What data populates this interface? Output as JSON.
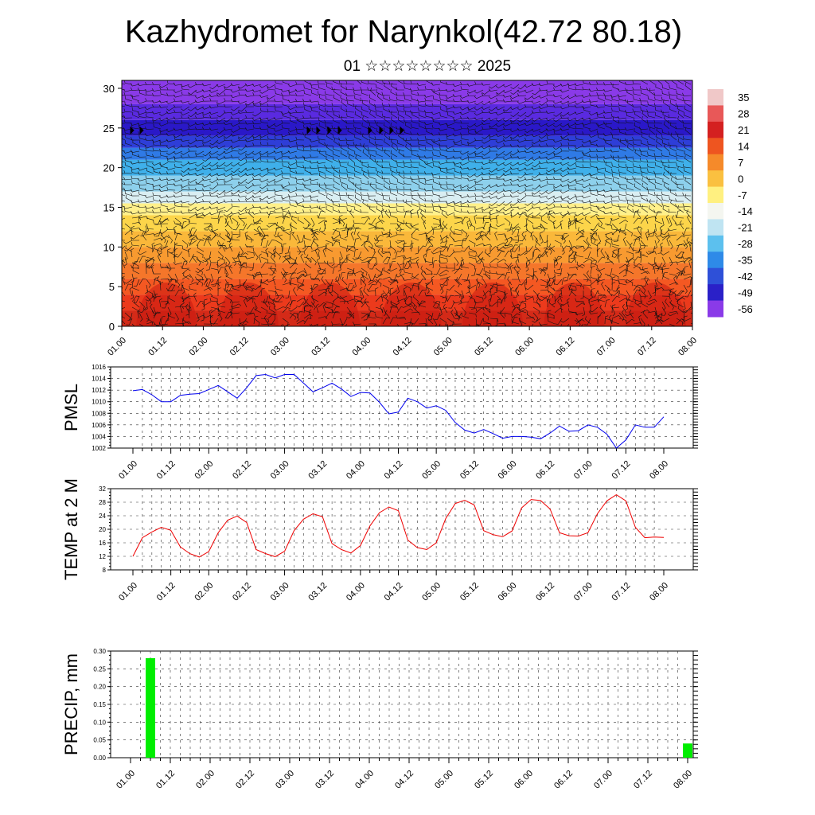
{
  "header": {
    "title": "Kazhydromet for Narynkol(42.72 80.18)",
    "subtitle": "01 ☆☆☆☆☆☆☆☆ 2025"
  },
  "chart_data": [
    {
      "type": "heatmap",
      "yticks": [
        "0",
        "5",
        "10",
        "15",
        "20",
        "25",
        "30"
      ],
      "ylim": [
        0,
        31
      ],
      "x_labels": [
        "01.00",
        "01.12",
        "02.00",
        "02.12",
        "03.00",
        "03.12",
        "04.00",
        "04.12",
        "05.00",
        "05.12",
        "06.00",
        "06.12",
        "07.00",
        "07.12",
        "08.00"
      ],
      "colorbar_labels": [
        "35",
        "28",
        "21",
        "14",
        "7",
        "0",
        "-7",
        "-14",
        "-21",
        "-28",
        "-35",
        "-42",
        "-49",
        "-56"
      ],
      "bands": [
        {
          "from": 0,
          "to": 2,
          "color": "#d42a18"
        },
        {
          "from": 2,
          "to": 4,
          "color": "#ec3a1c"
        },
        {
          "from": 4,
          "to": 6,
          "color": "#f45822"
        },
        {
          "from": 6,
          "to": 8,
          "color": "#f5762a"
        },
        {
          "from": 8,
          "to": 10,
          "color": "#f89a30"
        },
        {
          "from": 10,
          "to": 12,
          "color": "#fab83a"
        },
        {
          "from": 12,
          "to": 14,
          "color": "#fcd54a"
        },
        {
          "from": 14,
          "to": 15.5,
          "color": "#fff08a"
        },
        {
          "from": 15.5,
          "to": 17,
          "color": "#d9eef2"
        },
        {
          "from": 17,
          "to": 19,
          "color": "#8dd0ec"
        },
        {
          "from": 19,
          "to": 21,
          "color": "#3fb0ea"
        },
        {
          "from": 21,
          "to": 22.5,
          "color": "#2f7ae6"
        },
        {
          "from": 22.5,
          "to": 24,
          "color": "#2e3ed8"
        },
        {
          "from": 24,
          "to": 26,
          "color": "#2a18c8"
        },
        {
          "from": 26,
          "to": 28,
          "color": "#5a2ae0"
        },
        {
          "from": 28,
          "to": 31,
          "color": "#8a3ae8"
        }
      ],
      "colorbar_colors": [
        "#f0c8c8",
        "#e85858",
        "#d42020",
        "#ee5520",
        "#f58a2a",
        "#fac040",
        "#fff080",
        "#f4f6f0",
        "#bfe4f2",
        "#5cc0ee",
        "#2e8ae8",
        "#2e50d8",
        "#2a20c8",
        "#8a3ae8"
      ]
    },
    {
      "type": "line",
      "ylabel": "PMSL",
      "ylim": [
        1002,
        1016
      ],
      "yticks": [
        "1002",
        "1004",
        "1006",
        "1008",
        "1010",
        "1012",
        "1014",
        "1016"
      ],
      "x_labels": [
        "01.00",
        "01.12",
        "02.00",
        "02.12",
        "03.00",
        "03.12",
        "04.00",
        "04.12",
        "05.00",
        "05.12",
        "06.00",
        "06.12",
        "07.00",
        "07.12",
        "08.00"
      ],
      "values": [
        1011.9,
        1012.1,
        1011.2,
        1010.0,
        1010.0,
        1011.1,
        1011.3,
        1011.4,
        1012.1,
        1012.8,
        1011.7,
        1010.6,
        1012.4,
        1014.5,
        1014.7,
        1014.1,
        1014.7,
        1014.7,
        1013.2,
        1011.7,
        1012.4,
        1013.2,
        1012.2,
        1010.9,
        1011.6,
        1011.5,
        1009.9,
        1007.9,
        1008.2,
        1010.6,
        1010.0,
        1008.9,
        1009.3,
        1008.5,
        1006.4,
        1005.1,
        1004.6,
        1005.2,
        1004.5,
        1003.7,
        1004.0,
        1004.0,
        1003.9,
        1003.6,
        1004.6,
        1005.8,
        1004.9,
        1005.0,
        1006.0,
        1005.6,
        1004.4,
        1002.0,
        1003.4,
        1006.0,
        1005.6,
        1005.6,
        1007.4
      ],
      "color": "#0000ee"
    },
    {
      "type": "line",
      "ylabel": "TEMP at 2 M",
      "ylim": [
        8,
        32
      ],
      "yticks": [
        "8",
        "12",
        "16",
        "20",
        "24",
        "28",
        "32"
      ],
      "x_labels": [
        "01.00",
        "01.12",
        "02.00",
        "02.12",
        "03.00",
        "03.12",
        "04.00",
        "04.12",
        "05.00",
        "05.12",
        "06.00",
        "06.12",
        "07.00",
        "07.12",
        "08.00"
      ],
      "values": [
        12.0,
        17.5,
        19.2,
        20.6,
        19.7,
        14.8,
        12.8,
        11.8,
        13.4,
        19.0,
        22.7,
        23.9,
        22.0,
        14.0,
        12.8,
        11.9,
        13.5,
        19.6,
        23.0,
        24.6,
        23.7,
        15.8,
        14.0,
        13.0,
        15.2,
        21.0,
        24.9,
        26.6,
        25.5,
        16.8,
        14.6,
        14.0,
        16.0,
        23.2,
        27.6,
        28.6,
        27.2,
        19.6,
        18.4,
        17.8,
        19.5,
        26.3,
        28.8,
        28.5,
        26.0,
        19.0,
        18.1,
        18.0,
        19.0,
        24.6,
        28.4,
        30.2,
        28.4,
        20.6,
        17.5,
        17.7,
        17.6
      ],
      "color": "#ee0000"
    },
    {
      "type": "bar",
      "ylabel": "PRECIP, mm",
      "ylim": [
        0,
        0.3
      ],
      "yticks": [
        "0.00",
        "0.05",
        "0.10",
        "0.15",
        "0.20",
        "0.25",
        "0.30"
      ],
      "x_labels": [
        "01.00",
        "01.12",
        "02.00",
        "02.12",
        "03.00",
        "03.12",
        "04.00",
        "04.12",
        "05.00",
        "05.12",
        "06.00",
        "06.12",
        "07.00",
        "07.12",
        "08.00"
      ],
      "bars": [
        {
          "x": 3,
          "value": 0.28
        },
        {
          "x": 84,
          "value": 0.04
        }
      ],
      "color": "#00ee00"
    }
  ]
}
